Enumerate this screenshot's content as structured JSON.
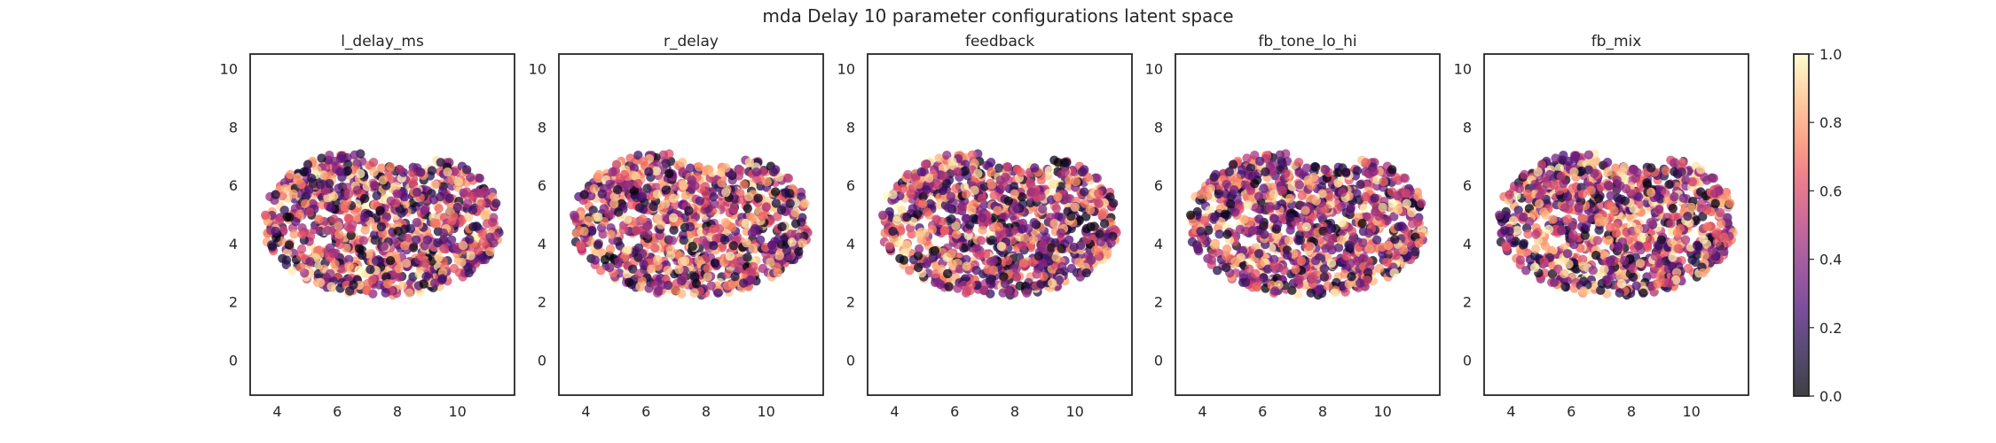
{
  "figure": {
    "title": "mda Delay 10 parameter configurations latent space"
  },
  "chart_data": {
    "type": "scatter",
    "xlim": [
      3.1,
      11.9
    ],
    "ylim": [
      -1.2,
      10.5
    ],
    "x_ticks": [
      4,
      6,
      8,
      10
    ],
    "y_ticks": [
      0,
      2,
      4,
      6,
      8,
      10
    ],
    "colormap": "magma",
    "color_range": [
      0.0,
      1.0
    ],
    "colorbar_ticks": [
      "0.0",
      "0.2",
      "0.4",
      "0.6",
      "0.8",
      "1.0"
    ],
    "panels": [
      {
        "title": "l_delay_ms"
      },
      {
        "title": "r_delay"
      },
      {
        "title": "feedback"
      },
      {
        "title": "fb_tone_lo_hi"
      },
      {
        "title": "fb_mix"
      }
    ],
    "point_cloud": {
      "count": 1000,
      "center": [
        7.6,
        4.75
      ],
      "x_extent": [
        3.3,
        11.4
      ],
      "y_extent": [
        2.0,
        7.4
      ],
      "marker_alpha": 0.75,
      "grid": false
    }
  }
}
